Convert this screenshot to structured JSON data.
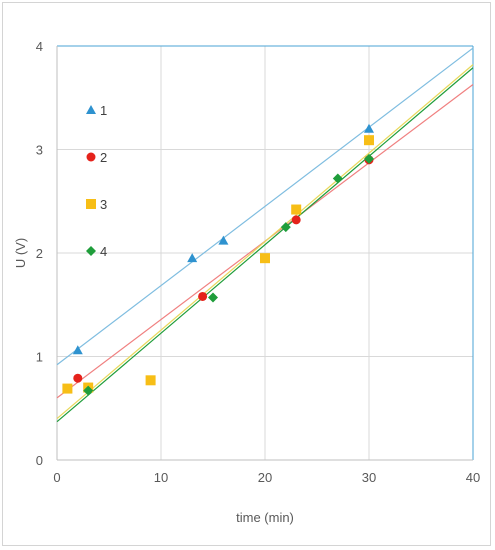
{
  "chart_data": {
    "type": "scatter",
    "title": "",
    "xlabel": "time (min)",
    "ylabel": "U (V)",
    "xlim": [
      0,
      40
    ],
    "ylim": [
      0,
      4
    ],
    "xticks": [
      "0",
      "10",
      "20",
      "30",
      "40"
    ],
    "yticks": [
      "0",
      "1",
      "2",
      "3",
      "4"
    ],
    "grid": true,
    "legend_position": "top-left",
    "series": [
      {
        "name": "1",
        "marker": "triangle",
        "color": "#2e92cf",
        "trend_color": "#7fbde0",
        "x": [
          2,
          13,
          16,
          30
        ],
        "y": [
          1.06,
          1.95,
          2.12,
          3.2
        ],
        "trendline": {
          "slope": 0.0765,
          "intercept": 0.92
        }
      },
      {
        "name": "2",
        "marker": "circle",
        "color": "#e5221b",
        "trend_color": "#f08080",
        "x": [
          2,
          14,
          23,
          30
        ],
        "y": [
          0.79,
          1.58,
          2.32,
          2.9
        ],
        "trendline": {
          "slope": 0.0757,
          "intercept": 0.6
        }
      },
      {
        "name": "3",
        "marker": "square",
        "color": "#f7be16",
        "trend_color": "#e8d85a",
        "x": [
          1,
          3,
          9,
          20,
          23,
          30
        ],
        "y": [
          0.69,
          0.7,
          0.77,
          1.95,
          2.42,
          3.09
        ],
        "trendline": {
          "slope": 0.0855,
          "intercept": 0.4
        }
      },
      {
        "name": "4",
        "marker": "diamond",
        "color": "#1f9d3a",
        "trend_color": "#1f9d3a",
        "x": [
          3,
          15,
          22,
          27,
          30
        ],
        "y": [
          0.67,
          1.57,
          2.25,
          2.72,
          2.91
        ],
        "trendline": {
          "slope": 0.0855,
          "intercept": 0.37
        }
      }
    ]
  }
}
